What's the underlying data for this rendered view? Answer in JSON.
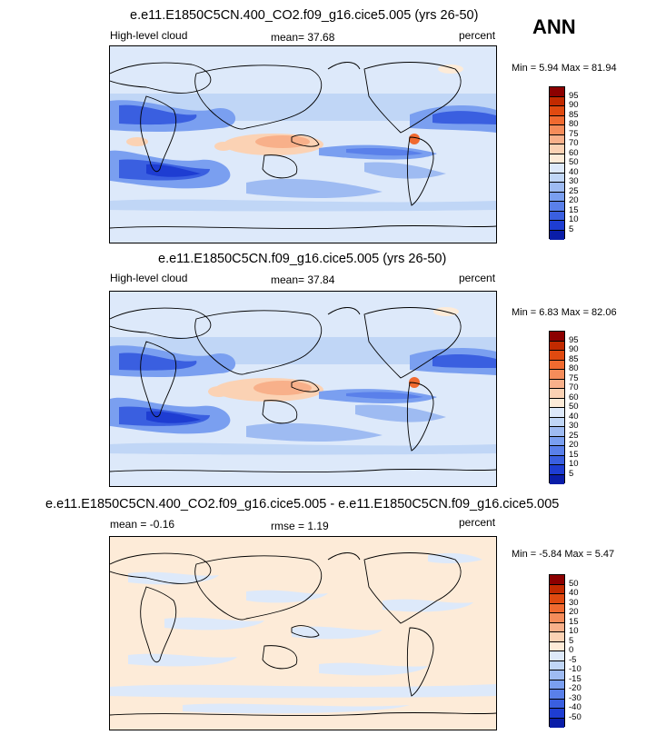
{
  "season": "ANN",
  "panels": [
    {
      "title": "e.e11.E1850C5CN.400_CO2.f09_g16.cice5.005 (yrs 26-50)",
      "left_label": "High-level cloud",
      "center_label": "mean=  37.68",
      "right_label": "percent",
      "minmax": "Min =   5.94 Max =  81.94",
      "mean": 37.68,
      "min": 5.94,
      "max": 81.94
    },
    {
      "title": "e.e11.E1850C5CN.f09_g16.cice5.005 (yrs 26-50)",
      "left_label": "High-level cloud",
      "center_label": "mean=  37.84",
      "right_label": "percent",
      "minmax": "Min =   6.83 Max =  82.06",
      "mean": 37.84,
      "min": 6.83,
      "max": 82.06
    },
    {
      "title": "e.e11.E1850C5CN.400_CO2.f09_g16.cice5.005 - e.e11.E1850C5CN.f09_g16.cice5.005",
      "left_label": "mean =  -0.16",
      "center_label": "rmse =   1.19",
      "right_label": "percent",
      "minmax": "Min =  -5.84 Max =   5.47",
      "mean": -0.16,
      "rmse": 1.19,
      "min": -5.84,
      "max": 5.47
    }
  ],
  "colorbars": {
    "abs": {
      "ticks": [
        "95",
        "90",
        "85",
        "80",
        "75",
        "70",
        "60",
        "50",
        "40",
        "30",
        "25",
        "20",
        "15",
        "10",
        "5"
      ],
      "colors": [
        "#8c0000",
        "#c22a00",
        "#e04a10",
        "#f06a30",
        "#f58c5a",
        "#f8b08a",
        "#fbd2b4",
        "#fdebd8",
        "#dde9fa",
        "#c0d6f6",
        "#9ebbf2",
        "#7a9ff0",
        "#5a80ea",
        "#3a5fe0",
        "#1e3dd2",
        "#0a1da8"
      ]
    },
    "diff": {
      "ticks": [
        "50",
        "40",
        "30",
        "20",
        "15",
        "10",
        "5",
        "0",
        "-5",
        "-10",
        "-15",
        "-20",
        "-30",
        "-40",
        "-50"
      ],
      "colors": [
        "#8c0000",
        "#c22a00",
        "#e04a10",
        "#f06a30",
        "#f58c5a",
        "#f8b08a",
        "#fbd2b4",
        "#fdebd8",
        "#dde9fa",
        "#c0d6f6",
        "#9ebbf2",
        "#7a9ff0",
        "#5a80ea",
        "#3a5fe0",
        "#1e3dd2",
        "#0a1da8"
      ]
    }
  },
  "chart_data": [
    {
      "type": "heatmap",
      "title": "e.e11.E1850C5CN.400_CO2.f09_g16.cice5.005 (yrs 26-50)",
      "variable": "High-level cloud",
      "units": "percent",
      "season": "ANN",
      "mean": 37.68,
      "min": 5.94,
      "max": 81.94,
      "levels": [
        5,
        10,
        15,
        20,
        25,
        30,
        40,
        50,
        60,
        70,
        75,
        80,
        85,
        90,
        95
      ]
    },
    {
      "type": "heatmap",
      "title": "e.e11.E1850C5CN.f09_g16.cice5.005 (yrs 26-50)",
      "variable": "High-level cloud",
      "units": "percent",
      "season": "ANN",
      "mean": 37.84,
      "min": 6.83,
      "max": 82.06,
      "levels": [
        5,
        10,
        15,
        20,
        25,
        30,
        40,
        50,
        60,
        70,
        75,
        80,
        85,
        90,
        95
      ]
    },
    {
      "type": "heatmap",
      "title": "e.e11.E1850C5CN.400_CO2.f09_g16.cice5.005 - e.e11.E1850C5CN.f09_g16.cice5.005",
      "units": "percent",
      "season": "ANN",
      "mean": -0.16,
      "rmse": 1.19,
      "min": -5.84,
      "max": 5.47,
      "levels": [
        -50,
        -40,
        -30,
        -20,
        -15,
        -10,
        -5,
        0,
        5,
        10,
        15,
        20,
        30,
        40,
        50
      ]
    }
  ]
}
